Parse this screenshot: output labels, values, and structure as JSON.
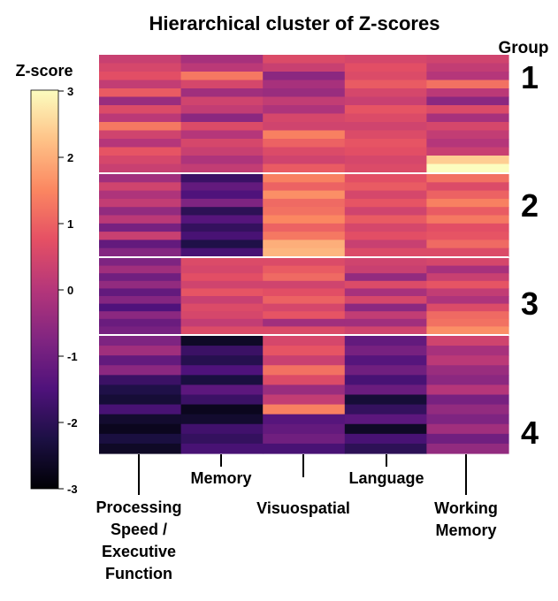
{
  "chart_data": {
    "type": "heatmap",
    "title": "Hierarchical cluster of Z-scores",
    "colormap": "magma",
    "zlim": [
      -3,
      3
    ],
    "colorbar": {
      "title": "Z-score",
      "ticks": [
        "3",
        "2",
        "1",
        "0",
        "-1",
        "-2",
        "-3"
      ]
    },
    "groups_header": "Group",
    "columns": [
      "Processing Speed / Executive Function",
      "Memory",
      "Visuospatial",
      "Language",
      "Working Memory"
    ],
    "column_label_lines": [
      [
        "Processing",
        "Speed /",
        "Executive",
        "Function"
      ],
      [
        "Memory"
      ],
      [
        "Visuospatial"
      ],
      [
        "Language"
      ],
      [
        "Working",
        "Memory"
      ]
    ],
    "groups": [
      {
        "label": "1",
        "z_profiles": [
          [
            0.3,
            -0.2,
            0.6,
            0.5,
            0.4
          ],
          [
            0.5,
            0.1,
            0.3,
            0.7,
            0.2
          ],
          [
            0.7,
            1.3,
            -0.6,
            0.6,
            0.0
          ],
          [
            0.2,
            0.5,
            -0.2,
            0.9,
            1.2
          ],
          [
            0.9,
            -0.3,
            -0.4,
            0.5,
            0.1
          ],
          [
            -0.4,
            0.4,
            0.2,
            0.3,
            -0.6
          ],
          [
            0.6,
            0.2,
            -0.1,
            0.8,
            0.6
          ],
          [
            0.1,
            -0.6,
            0.5,
            0.6,
            -0.2
          ],
          [
            1.3,
            0.6,
            0.4,
            0.4,
            0.5
          ],
          [
            0.4,
            0.0,
            1.4,
            0.6,
            0.2
          ],
          [
            0.0,
            0.5,
            1.0,
            0.8,
            0.0
          ],
          [
            0.8,
            0.3,
            0.6,
            0.7,
            0.3
          ],
          [
            0.5,
            -0.1,
            0.4,
            0.5,
            2.4
          ],
          [
            0.3,
            0.2,
            0.9,
            0.6,
            3.0
          ]
        ]
      },
      {
        "label": "2",
        "z_profiles": [
          [
            -0.3,
            -1.8,
            1.4,
            0.7,
            1.2
          ],
          [
            0.4,
            -1.2,
            1.0,
            0.9,
            0.6
          ],
          [
            -0.1,
            -1.5,
            1.6,
            0.5,
            1.0
          ],
          [
            0.2,
            -0.8,
            1.1,
            0.8,
            1.4
          ],
          [
            -0.5,
            -2.0,
            1.2,
            0.4,
            0.9
          ],
          [
            0.1,
            -1.4,
            1.5,
            0.9,
            1.3
          ],
          [
            -0.9,
            -1.9,
            1.0,
            0.5,
            0.7
          ],
          [
            0.3,
            -1.6,
            1.3,
            0.7,
            0.8
          ],
          [
            -1.2,
            -2.2,
            2.0,
            0.3,
            1.1
          ],
          [
            -0.7,
            -1.6,
            2.1,
            0.6,
            0.6
          ]
        ]
      },
      {
        "label": "3",
        "z_profiles": [
          [
            -0.8,
            0.6,
            0.6,
            0.4,
            0.5
          ],
          [
            -0.3,
            0.5,
            0.9,
            0.3,
            -0.2
          ],
          [
            -1.0,
            0.7,
            1.1,
            -0.5,
            0.3
          ],
          [
            -0.5,
            0.4,
            0.4,
            0.6,
            0.8
          ],
          [
            -1.2,
            0.8,
            0.7,
            -0.2,
            0.2
          ],
          [
            -0.7,
            0.3,
            1.0,
            0.5,
            -0.1
          ],
          [
            -1.5,
            0.6,
            0.5,
            -0.6,
            0.6
          ],
          [
            -0.6,
            0.5,
            0.8,
            0.2,
            1.1
          ],
          [
            -1.1,
            0.2,
            -0.3,
            -0.3,
            1.2
          ],
          [
            -0.9,
            0.6,
            0.6,
            0.4,
            1.6
          ]
        ]
      },
      {
        "label": "4",
        "z_profiles": [
          [
            -0.8,
            -2.6,
            0.5,
            -1.2,
            0.4
          ],
          [
            -0.3,
            -1.8,
            0.8,
            -0.9,
            -0.2
          ],
          [
            -1.2,
            -2.1,
            0.3,
            -1.4,
            0.1
          ],
          [
            -0.6,
            -1.5,
            1.2,
            -1.0,
            -0.4
          ],
          [
            -1.8,
            -2.3,
            0.6,
            -1.6,
            -0.6
          ],
          [
            -2.2,
            -1.3,
            -0.4,
            -1.1,
            0.0
          ],
          [
            -2.4,
            -1.8,
            0.2,
            -2.4,
            -0.9
          ],
          [
            -1.6,
            -2.7,
            1.4,
            -1.9,
            -0.5
          ],
          [
            -2.5,
            -2.5,
            -1.4,
            -1.3,
            -0.8
          ],
          [
            -2.7,
            -1.7,
            -1.2,
            -2.6,
            -0.3
          ],
          [
            -2.3,
            -1.9,
            -1.0,
            -1.6,
            -1.0
          ],
          [
            -2.6,
            -1.6,
            -1.6,
            -2.0,
            -0.5
          ]
        ]
      }
    ]
  }
}
